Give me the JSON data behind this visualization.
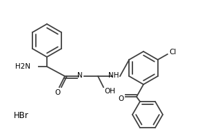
{
  "background": "#ffffff",
  "line_color": "#404040",
  "line_width": 1.3,
  "text_color": "#000000",
  "hbr_text": "HBr",
  "cl_text": "Cl",
  "o_text": "O",
  "nh_text": "NH",
  "n_text": "N",
  "h2n_text": "H2N",
  "oh_text": "OH",
  "font_size": 7.5
}
